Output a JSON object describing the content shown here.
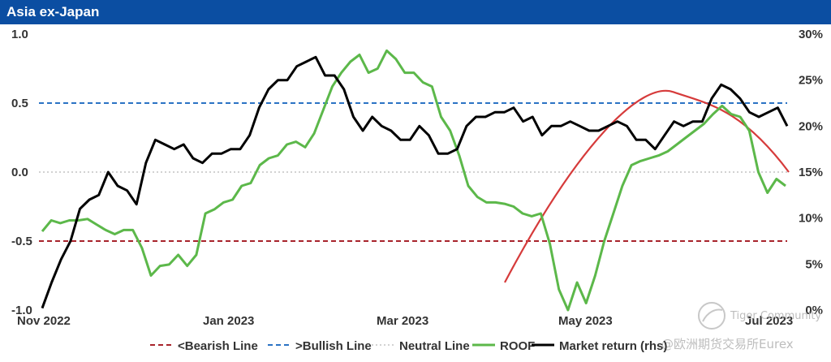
{
  "title": "Asia ex-Japan",
  "watermark": {
    "line1": "Tiger Community",
    "line2": "@欧洲期货交易所Eurex"
  },
  "chart_data": {
    "type": "line",
    "x_ticks": [
      "Nov 2022",
      "Jan 2023",
      "Mar 2023",
      "May 2023",
      "Jul 2023"
    ],
    "y_left": {
      "ticks": [
        "1.0",
        "0.5",
        "0.0",
        "-0.5",
        "-1.0"
      ],
      "range": [
        -1.0,
        1.0
      ]
    },
    "y_right": {
      "ticks": [
        "30%",
        "25%",
        "20%",
        "15%",
        "10%",
        "5%",
        "0%"
      ],
      "range": [
        0,
        30
      ]
    },
    "reference_lines": [
      {
        "name": "<Bearish Line",
        "value": -0.5,
        "color": "#a8242c",
        "style": "dashed"
      },
      {
        "name": ">Bullish Line",
        "value": 0.5,
        "color": "#2b73c4",
        "style": "dashed"
      },
      {
        "name": "Neutral Line",
        "value": 0.0,
        "color": "#b8b8b8",
        "style": "dotted"
      }
    ],
    "series": [
      {
        "name": "ROOF",
        "axis": "left",
        "color": "#5cb84a",
        "values": [
          -0.43,
          -0.35,
          -0.37,
          -0.35,
          -0.35,
          -0.34,
          -0.38,
          -0.42,
          -0.45,
          -0.42,
          -0.42,
          -0.55,
          -0.75,
          -0.68,
          -0.67,
          -0.6,
          -0.68,
          -0.6,
          -0.3,
          -0.27,
          -0.22,
          -0.2,
          -0.1,
          -0.08,
          0.05,
          0.1,
          0.12,
          0.2,
          0.22,
          0.18,
          0.28,
          0.45,
          0.62,
          0.72,
          0.8,
          0.85,
          0.72,
          0.75,
          0.88,
          0.82,
          0.72,
          0.72,
          0.65,
          0.62,
          0.4,
          0.3,
          0.12,
          -0.1,
          -0.18,
          -0.22,
          -0.22,
          -0.23,
          -0.25,
          -0.3,
          -0.32,
          -0.3,
          -0.52,
          -0.85,
          -1.0,
          -0.8,
          -0.95,
          -0.75,
          -0.5,
          -0.3,
          -0.1,
          0.05,
          0.08,
          0.1,
          0.12,
          0.15,
          0.2,
          0.25,
          0.3,
          0.35,
          0.42,
          0.48,
          0.42,
          0.4,
          0.3,
          0.0,
          -0.15,
          -0.05,
          -0.1
        ]
      },
      {
        "name": "Market return (rhs)",
        "axis": "right",
        "color": "#000000",
        "values": [
          0.2,
          3.0,
          5.5,
          7.5,
          11.0,
          12.0,
          12.5,
          15.0,
          13.5,
          13.0,
          11.5,
          16.0,
          18.5,
          18.0,
          17.5,
          18.0,
          16.5,
          16.0,
          17.0,
          17.0,
          17.5,
          17.5,
          19.0,
          22.0,
          24.0,
          25.0,
          25.0,
          26.5,
          27.0,
          27.5,
          25.5,
          25.5,
          24.0,
          21.0,
          19.5,
          21.0,
          20.0,
          19.5,
          18.5,
          18.5,
          20.0,
          19.0,
          17.0,
          17.0,
          17.5,
          20.0,
          21.0,
          21.0,
          21.5,
          21.5,
          22.0,
          20.5,
          21.0,
          19.0,
          20.0,
          20.0,
          20.5,
          20.0,
          19.5,
          19.5,
          20.0,
          20.5,
          20.0,
          18.5,
          18.5,
          17.5,
          19.0,
          20.5,
          20.0,
          20.5,
          20.5,
          23.0,
          24.5,
          24.0,
          23.0,
          21.5,
          21.0,
          21.5,
          22.0,
          20.0
        ]
      }
    ],
    "trend_curve": {
      "color": "#d63b3b"
    },
    "legend": {
      "position": "bottom",
      "entries": [
        "<Bearish Line",
        ">Bullish Line",
        "Neutral Line",
        "ROOF",
        "Market return (rhs)"
      ]
    }
  }
}
